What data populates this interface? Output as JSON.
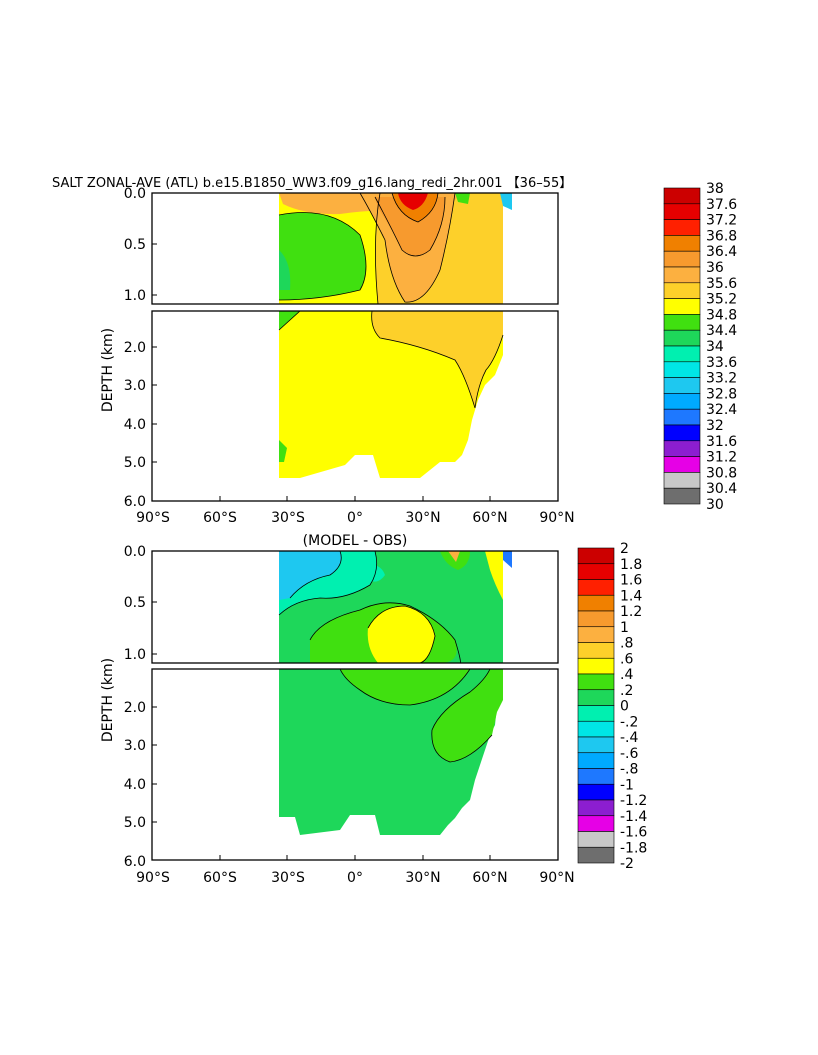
{
  "chart_data": [
    {
      "type": "heatmap",
      "title": "SALT ZONAL-AVE (ATL) b.e15.B1850_WW3.f09_g16.lang_redi_2hr.001 【36–55】",
      "ylabel": "DEPTH (km)",
      "xticks": [
        "90°S",
        "60°S",
        "30°S",
        "0°",
        "30°N",
        "60°N",
        "90°N"
      ],
      "yticks_top": [
        "0.0",
        "0.5",
        "1.0"
      ],
      "yticks_bottom": [
        "2.0",
        "3.0",
        "4.0",
        "5.0",
        "6.0"
      ],
      "colorbar": {
        "labels": [
          "38",
          "37.6",
          "37.2",
          "36.8",
          "36.4",
          "36",
          "35.6",
          "35.2",
          "34.8",
          "34.4",
          "34",
          "33.6",
          "33.2",
          "32.8",
          "32.4",
          "32",
          "31.6",
          "31.2",
          "30.8",
          "30.4",
          "30"
        ],
        "colors": [
          "#cc0000",
          "#e60000",
          "#ff2000",
          "#f08000",
          "#f79a2e",
          "#fcb040",
          "#fdd02a",
          "#ffff00",
          "#40e010",
          "#1ed75a",
          "#00f0b0",
          "#00e6e6",
          "#1ec8f0",
          "#00aaff",
          "#1e78ff",
          "#0000ff",
          "#8c1ed0",
          "#e600e6",
          "#c8c8c8",
          "#6e6e6e"
        ]
      }
    },
    {
      "type": "heatmap",
      "title": "(MODEL - OBS)",
      "ylabel": "DEPTH (km)",
      "xticks": [
        "90°S",
        "60°S",
        "30°S",
        "0°",
        "30°N",
        "60°N",
        "90°N"
      ],
      "yticks_top": [
        "0.0",
        "0.5",
        "1.0"
      ],
      "yticks_bottom": [
        "2.0",
        "3.0",
        "4.0",
        "5.0",
        "6.0"
      ],
      "colorbar": {
        "labels": [
          "2",
          "1.8",
          "1.6",
          "1.4",
          "1.2",
          "1",
          ".8",
          ".6",
          ".4",
          ".2",
          "0",
          "-.2",
          "-.4",
          "-.6",
          "-.8",
          "-1",
          "-1.2",
          "-1.4",
          "-1.6",
          "-1.8",
          "-2"
        ],
        "colors": [
          "#cc0000",
          "#e60000",
          "#ff2000",
          "#f08000",
          "#f79a2e",
          "#fcb040",
          "#fdd02a",
          "#ffff00",
          "#40e010",
          "#1ed75a",
          "#00f0b0",
          "#00e6e6",
          "#1ec8f0",
          "#00aaff",
          "#1e78ff",
          "#0000ff",
          "#8c1ed0",
          "#e600e6",
          "#c8c8c8",
          "#6e6e6e"
        ]
      }
    }
  ]
}
